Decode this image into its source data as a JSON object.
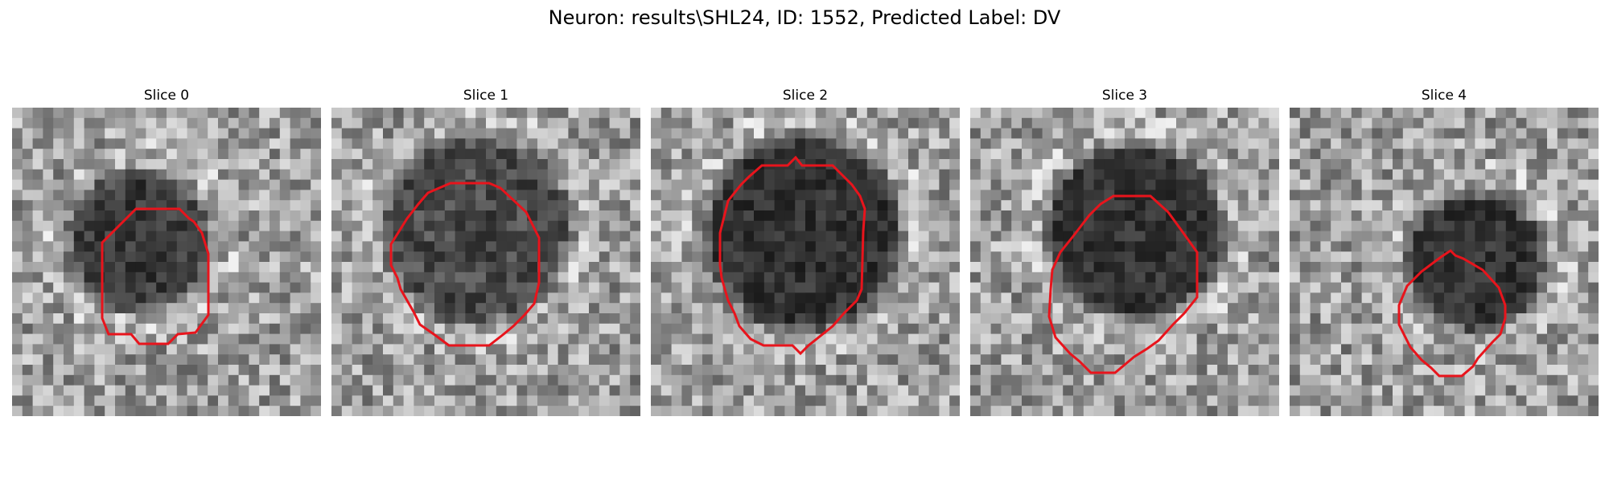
{
  "figure": {
    "title": "Neuron: results\\SHL24, ID: 1552, Predicted Label: DV"
  },
  "panels": [
    {
      "title": "Slice 0"
    },
    {
      "title": "Slice 1"
    },
    {
      "title": "Slice 2"
    },
    {
      "title": "Slice 3"
    },
    {
      "title": "Slice 4"
    }
  ],
  "colors": {
    "contour": "#e8141c",
    "background": "#ffffff"
  },
  "image_content": "grayscale noisy microscopy tiles with dark round cell body outlined by red polygon contour"
}
